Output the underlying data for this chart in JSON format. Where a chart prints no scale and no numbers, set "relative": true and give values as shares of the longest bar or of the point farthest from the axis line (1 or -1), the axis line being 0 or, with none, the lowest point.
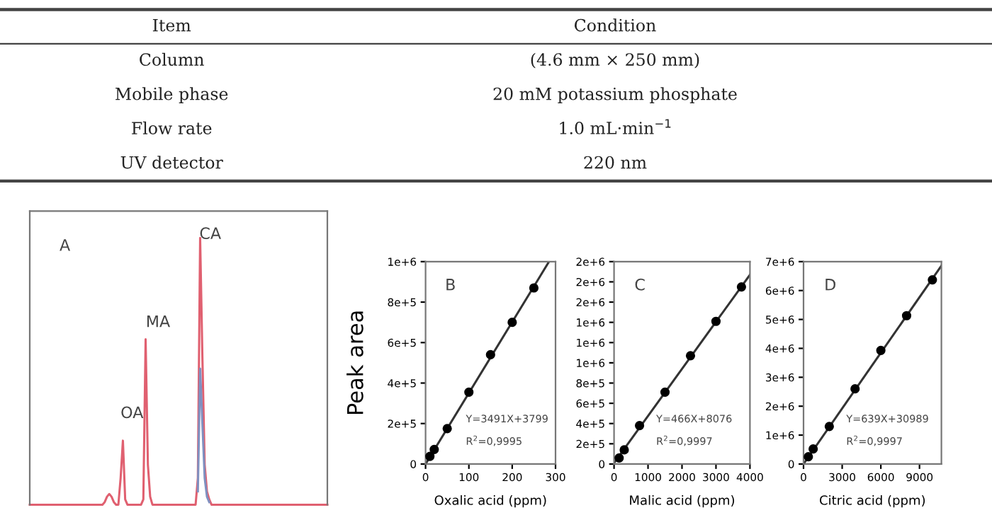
{
  "chart_data": [
    {
      "type": "other",
      "annotations": [
        "Item",
        "Condition",
        "Column",
        "(4.6 mm × 250 mm)",
        "Mobile phase",
        "20 mM potassium phosphate",
        "Flow rate",
        "1.0 mL·min$^{−1}$",
        "UV detector",
        "220 nm"
      ]
    },
    {
      "type": "line",
      "relative": true,
      "annotations": [
        "A",
        "OA",
        "MA",
        "CA"
      ],
      "categories": [
        null,
        null,
        null,
        null,
        null,
        null,
        null,
        null,
        null,
        null,
        null,
        null,
        null,
        null,
        null,
        null,
        null,
        null,
        null,
        null,
        null,
        null,
        null,
        null,
        null,
        null,
        null,
        null,
        null,
        null,
        null,
        null,
        null,
        null,
        null,
        null,
        null,
        null,
        null,
        null,
        null,
        null,
        null,
        null,
        null,
        null,
        null,
        null,
        null,
        null,
        null,
        null,
        null,
        null,
        null,
        null,
        null,
        null,
        null,
        null,
        null,
        null,
        null,
        null,
        null,
        null,
        null,
        null,
        null,
        null,
        null,
        null,
        null,
        null,
        null,
        null,
        null,
        null,
        null,
        null,
        null,
        null,
        null,
        null,
        null,
        null,
        null,
        null,
        null,
        null,
        null,
        null,
        null,
        null,
        null,
        null,
        null,
        null,
        null,
        null,
        null,
        null,
        null,
        null,
        null,
        null,
        null,
        null,
        null,
        null,
        null,
        null,
        null,
        null,
        null,
        null,
        null,
        null,
        null,
        null,
        null,
        null,
        null,
        null,
        null,
        null,
        null,
        null,
        null,
        null,
        null,
        null
      ],
      "series": [
        {
          "color": "#e06070",
          "values": [
            0,
            0,
            0,
            0,
            0,
            0,
            0,
            0,
            0,
            0,
            0,
            0,
            0,
            0,
            0,
            0,
            0,
            0,
            0,
            0,
            0,
            0,
            0,
            0,
            0,
            0,
            0,
            0,
            0,
            0,
            0,
            0,
            0,
            0.01,
            0.03,
            0.04,
            0.03,
            0.01,
            0,
            0,
            0.1,
            0.24,
            0.02,
            0,
            0,
            0,
            0,
            0,
            0,
            0,
            0.02,
            0.62,
            0.15,
            0.03,
            0,
            0,
            0,
            0,
            0,
            0,
            0,
            0,
            0,
            0,
            0,
            0,
            0,
            0,
            0,
            0,
            0,
            0,
            0,
            0,
            0.1,
            1.0,
            0.55,
            0.15,
            0.05,
            0.02,
            0,
            0,
            0,
            0,
            0,
            0,
            0,
            0,
            0,
            0,
            0,
            0,
            0,
            0,
            0,
            0,
            0,
            0,
            0,
            0,
            0,
            0,
            0,
            0,
            0,
            0,
            0,
            0,
            0,
            0,
            0,
            0,
            0,
            0,
            0,
            0,
            0,
            0,
            0,
            0,
            0,
            0,
            0,
            0,
            0,
            0,
            0,
            0,
            0,
            0,
            0,
            0
          ]
        },
        {
          "color": "#8090c0",
          "values": [
            null,
            null,
            null,
            null,
            null,
            null,
            null,
            null,
            null,
            null,
            null,
            null,
            null,
            null,
            null,
            null,
            null,
            null,
            null,
            null,
            null,
            null,
            null,
            null,
            null,
            null,
            null,
            null,
            null,
            null,
            null,
            null,
            null,
            null,
            null,
            null,
            null,
            null,
            null,
            null,
            null,
            null,
            null,
            null,
            null,
            null,
            null,
            null,
            null,
            null,
            null,
            null,
            null,
            null,
            null,
            null,
            null,
            null,
            null,
            null,
            null,
            null,
            null,
            null,
            null,
            null,
            null,
            null,
            null,
            null,
            null,
            null,
            null,
            null,
            0.05,
            0.51,
            0.3,
            0.1,
            0.03,
            0.01,
            null,
            null,
            null,
            null,
            null,
            null,
            null,
            null,
            null,
            null,
            null,
            null,
            null,
            null,
            null,
            null,
            null,
            null,
            null,
            null,
            null,
            null,
            null,
            null,
            null,
            null,
            null,
            null,
            null,
            null,
            null,
            null,
            null,
            null,
            null,
            null,
            null,
            null,
            null,
            null,
            null,
            null,
            null,
            null,
            null,
            null,
            null,
            null,
            null,
            null,
            null,
            null
          ]
        }
      ]
    },
    {
      "type": "scatter",
      "ylabel": "Peak area",
      "xlabel": "Oxalic acid (ppm)",
      "annotations": [
        "B",
        "Y=3491X+3799",
        "R$^{2}$=0,9995"
      ],
      "xlim": [
        0,
        300
      ],
      "xticks": [
        0,
        100,
        200,
        300
      ],
      "ylim": [
        0,
        1000000
      ],
      "yticks": [
        0,
        {
          "value": 200000,
          "label": "2e+5"
        },
        {
          "value": 400000,
          "label": "4e+5"
        },
        {
          "value": 600000,
          "label": "6e+5"
        },
        {
          "value": 800000,
          "label": "8e+5"
        },
        {
          "value": 1000000,
          "label": "1e+6"
        }
      ],
      "series": [
        {
          "color": "#000000",
          "marker": "circle",
          "x": [
            10,
            20,
            50,
            100,
            150,
            200,
            250
          ],
          "values": [
            38000,
            72000,
            175000,
            355000,
            540000,
            700000,
            870000
          ]
        },
        {
          "type": "line",
          "color": "#333333",
          "x": [
            0,
            285
          ],
          "values": [
            0,
            1000000
          ]
        }
      ]
    },
    {
      "type": "scatter",
      "xlabel": "Malic acid (ppm)",
      "annotations": [
        "C",
        "Y=466X+8076",
        "R$^{2}$=0,9997"
      ],
      "xlim": [
        0,
        4000
      ],
      "xticks": [
        0,
        1000,
        2000,
        3000,
        4000
      ],
      "ylim": [
        0,
        2000000
      ],
      "yticks": [
        0,
        {
          "value": 200000,
          "label": "2e+5"
        },
        {
          "value": 400000,
          "label": "4e+5"
        },
        {
          "value": 600000,
          "label": "6e+5"
        },
        {
          "value": 800000,
          "label": "8e+5"
        },
        {
          "value": 1000000,
          "label": "1e+6"
        },
        {
          "value": 1200000,
          "label": "1e+6"
        },
        {
          "value": 1400000,
          "label": "1e+6"
        },
        {
          "value": 1600000,
          "label": "2e+6"
        },
        {
          "value": 1800000,
          "label": "2e+6"
        },
        {
          "value": 2000000,
          "label": "2e+6"
        }
      ],
      "series": [
        {
          "color": "#000000",
          "marker": "circle",
          "x": [
            150,
            300,
            750,
            1500,
            2250,
            3000,
            3750
          ],
          "values": [
            60000,
            140000,
            380000,
            710000,
            1070000,
            1410000,
            1750000
          ]
        },
        {
          "type": "line",
          "color": "#333333",
          "x": [
            0,
            4000
          ],
          "values": [
            10000,
            1870000
          ]
        }
      ]
    },
    {
      "type": "scatter",
      "xlabel": "Citric acid (ppm)",
      "annotations": [
        "D",
        "Y=639X+30989",
        "R$^{2}$=0,9997"
      ],
      "xlim": [
        0,
        10700
      ],
      "xticks": [
        0,
        3000,
        6000,
        9000
      ],
      "ylim": [
        0,
        7000000
      ],
      "yticks": [
        0,
        {
          "value": 1000000,
          "label": "1e+6"
        },
        {
          "value": 2000000,
          "label": "2e+6"
        },
        {
          "value": 3000000,
          "label": "3e+6"
        },
        {
          "value": 4000000,
          "label": "4e+6"
        },
        {
          "value": 5000000,
          "label": "5e+6"
        },
        {
          "value": 6000000,
          "label": "6e+6"
        },
        {
          "value": 7000000,
          "label": "7e+6"
        }
      ],
      "series": [
        {
          "color": "#000000",
          "marker": "circle",
          "x": [
            375,
            750,
            2000,
            4000,
            6000,
            8000,
            10000
          ],
          "values": [
            250000,
            520000,
            1300000,
            2600000,
            3930000,
            5130000,
            6370000
          ]
        },
        {
          "type": "line",
          "color": "#333333",
          "x": [
            0,
            10700
          ],
          "values": [
            0,
            6860000
          ]
        }
      ]
    }
  ]
}
